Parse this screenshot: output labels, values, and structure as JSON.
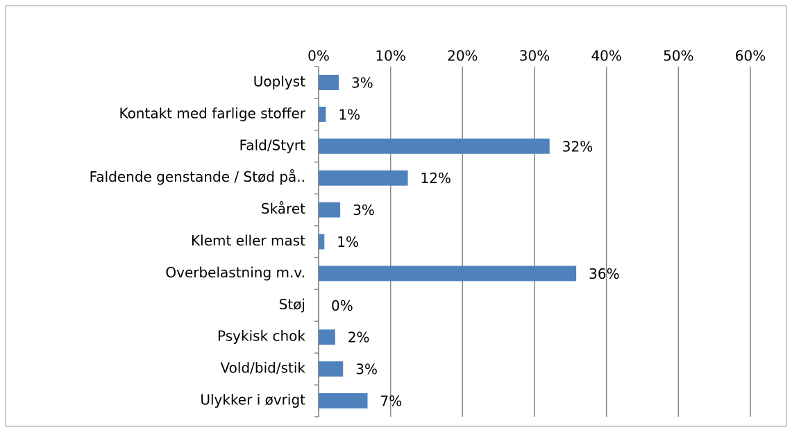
{
  "chart_data": {
    "type": "barh",
    "categories": [
      "Uoplyst",
      "Kontakt med farlige stoffer",
      "Fald/Styrt",
      "Faldende genstande / Stød på..",
      "Skåret",
      "Klemt eller mast",
      "Overbelastning m.v.",
      "Støj",
      "Psykisk chok",
      "Vold/bid/stik",
      "Ulykker i øvrigt"
    ],
    "values": [
      2.8,
      1.0,
      32.1,
      12.4,
      3.0,
      0.8,
      35.8,
      0,
      2.3,
      3.4,
      6.8
    ],
    "value_labels": [
      "3%",
      "1%",
      "32%",
      "12%",
      "3%",
      "1%",
      "36%",
      "0%",
      "2%",
      "3%",
      "7%"
    ],
    "color": "#4f81bd",
    "xlim": [
      0,
      60
    ],
    "xticks": [
      {
        "value": 0,
        "label": "0%"
      },
      {
        "value": 10,
        "label": "10%"
      },
      {
        "value": 20,
        "label": "20%"
      },
      {
        "value": 30,
        "label": "30%"
      },
      {
        "value": 40,
        "label": "40%"
      },
      {
        "value": 50,
        "label": "50%"
      },
      {
        "value": 60,
        "label": "60%"
      }
    ],
    "grid": true
  }
}
